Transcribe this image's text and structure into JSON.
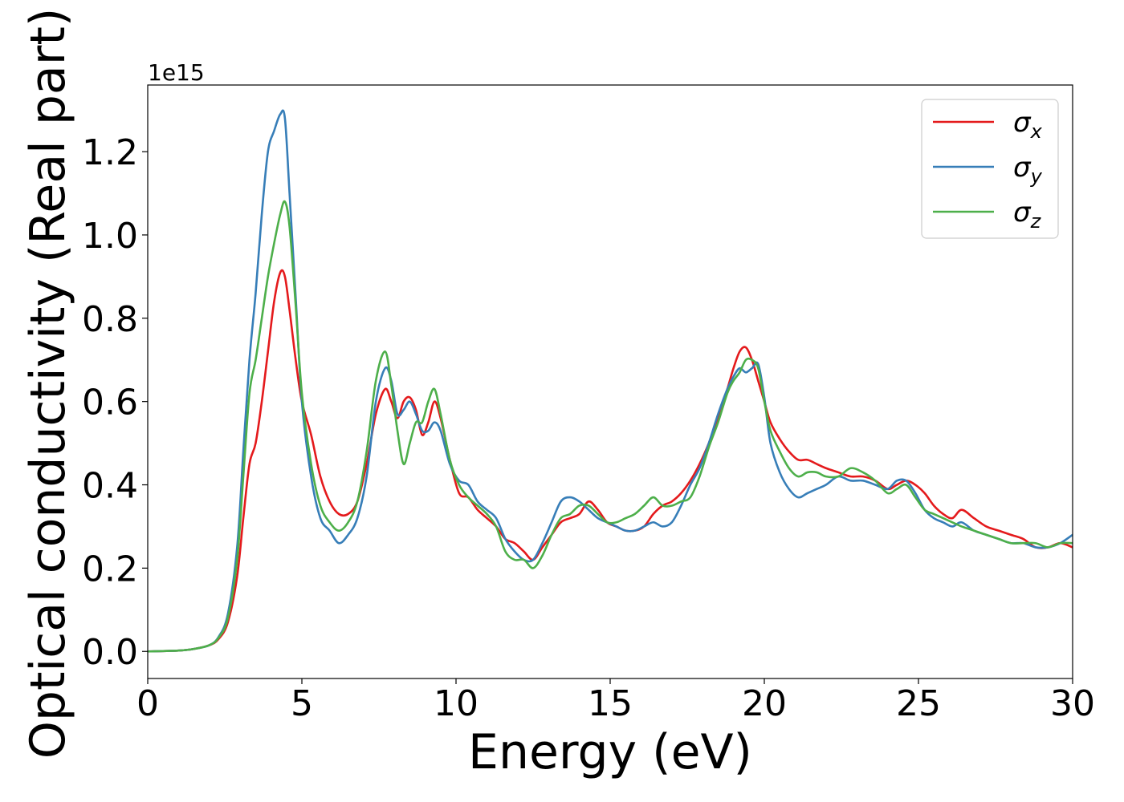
{
  "chart_data": {
    "type": "line",
    "title": "",
    "xlabel": "Energy (eV)",
    "ylabel": "Optical conductivity (Real part)",
    "offset_text": "1e15",
    "xlim": [
      0,
      30
    ],
    "ylim": [
      -0.065,
      1.36
    ],
    "xticks": [
      0,
      5,
      10,
      15,
      20,
      25,
      30
    ],
    "xtick_labels": [
      "0",
      "5",
      "10",
      "15",
      "20",
      "25",
      "30"
    ],
    "yticks": [
      0.0,
      0.2,
      0.4,
      0.6,
      0.8,
      1.0,
      1.2
    ],
    "ytick_labels": [
      "0.0",
      "0.2",
      "0.4",
      "0.6",
      "0.8",
      "1.0",
      "1.2"
    ],
    "grid": false,
    "legend_position": "top-right",
    "series": [
      {
        "name": "σx",
        "label_base": "σ",
        "label_sub": "x",
        "color": "#e41a1c",
        "x": [
          0,
          1,
          1.5,
          2,
          2.3,
          2.6,
          2.9,
          3.1,
          3.3,
          3.5,
          3.7,
          3.9,
          4.1,
          4.3,
          4.45,
          4.6,
          4.8,
          5.0,
          5.3,
          5.6,
          5.9,
          6.2,
          6.5,
          6.8,
          7.1,
          7.4,
          7.7,
          7.9,
          8.1,
          8.3,
          8.5,
          8.7,
          8.9,
          9.1,
          9.3,
          9.5,
          9.8,
          10.1,
          10.4,
          10.7,
          11.0,
          11.3,
          11.6,
          11.9,
          12.2,
          12.5,
          12.8,
          13.1,
          13.4,
          13.7,
          14.0,
          14.3,
          14.6,
          14.9,
          15.2,
          15.5,
          15.8,
          16.1,
          16.4,
          16.7,
          17.0,
          17.3,
          17.6,
          17.9,
          18.2,
          18.5,
          18.8,
          19.0,
          19.2,
          19.4,
          19.6,
          19.8,
          20.0,
          20.2,
          20.5,
          20.8,
          21.1,
          21.4,
          21.7,
          22.0,
          22.4,
          22.8,
          23.2,
          23.6,
          24.0,
          24.3,
          24.6,
          24.9,
          25.2,
          25.5,
          25.8,
          26.1,
          26.4,
          26.8,
          27.2,
          27.6,
          28.0,
          28.4,
          28.8,
          29.2,
          29.6,
          30.0
        ],
        "y": [
          0.0,
          0.002,
          0.006,
          0.015,
          0.03,
          0.07,
          0.18,
          0.32,
          0.45,
          0.5,
          0.6,
          0.72,
          0.84,
          0.91,
          0.9,
          0.82,
          0.7,
          0.6,
          0.52,
          0.42,
          0.36,
          0.33,
          0.33,
          0.36,
          0.45,
          0.57,
          0.63,
          0.6,
          0.56,
          0.6,
          0.61,
          0.58,
          0.52,
          0.55,
          0.6,
          0.56,
          0.46,
          0.38,
          0.37,
          0.34,
          0.32,
          0.3,
          0.27,
          0.26,
          0.24,
          0.22,
          0.25,
          0.28,
          0.31,
          0.32,
          0.33,
          0.36,
          0.34,
          0.31,
          0.3,
          0.29,
          0.29,
          0.3,
          0.33,
          0.35,
          0.36,
          0.38,
          0.41,
          0.45,
          0.5,
          0.56,
          0.63,
          0.68,
          0.72,
          0.73,
          0.7,
          0.65,
          0.6,
          0.55,
          0.51,
          0.48,
          0.46,
          0.46,
          0.45,
          0.44,
          0.43,
          0.42,
          0.42,
          0.41,
          0.39,
          0.4,
          0.41,
          0.4,
          0.38,
          0.35,
          0.33,
          0.32,
          0.34,
          0.32,
          0.3,
          0.29,
          0.28,
          0.27,
          0.25,
          0.25,
          0.26,
          0.25
        ]
      },
      {
        "name": "σy",
        "label_base": "σ",
        "label_sub": "y",
        "color": "#377eb8",
        "x": [
          0,
          1,
          1.5,
          2,
          2.3,
          2.6,
          2.9,
          3.1,
          3.3,
          3.5,
          3.7,
          3.9,
          4.1,
          4.3,
          4.45,
          4.6,
          4.8,
          5.0,
          5.3,
          5.6,
          5.9,
          6.2,
          6.5,
          6.8,
          7.1,
          7.4,
          7.7,
          7.9,
          8.1,
          8.3,
          8.5,
          8.7,
          8.9,
          9.1,
          9.3,
          9.5,
          9.8,
          10.1,
          10.4,
          10.7,
          11.0,
          11.3,
          11.6,
          11.9,
          12.2,
          12.5,
          12.8,
          13.1,
          13.4,
          13.7,
          14.0,
          14.3,
          14.6,
          14.9,
          15.2,
          15.5,
          15.8,
          16.1,
          16.4,
          16.7,
          17.0,
          17.3,
          17.6,
          17.9,
          18.2,
          18.5,
          18.8,
          19.0,
          19.2,
          19.4,
          19.6,
          19.8,
          20.0,
          20.2,
          20.5,
          20.8,
          21.1,
          21.4,
          21.7,
          22.0,
          22.4,
          22.8,
          23.2,
          23.6,
          24.0,
          24.3,
          24.6,
          24.9,
          25.2,
          25.5,
          25.8,
          26.1,
          26.4,
          26.8,
          27.2,
          27.6,
          28.0,
          28.4,
          28.8,
          29.2,
          29.6,
          30.0
        ],
        "y": [
          0.0,
          0.002,
          0.006,
          0.015,
          0.035,
          0.09,
          0.25,
          0.48,
          0.7,
          0.86,
          1.05,
          1.2,
          1.25,
          1.29,
          1.28,
          1.1,
          0.85,
          0.6,
          0.42,
          0.32,
          0.29,
          0.26,
          0.28,
          0.32,
          0.42,
          0.6,
          0.68,
          0.65,
          0.57,
          0.58,
          0.6,
          0.57,
          0.53,
          0.53,
          0.55,
          0.53,
          0.45,
          0.41,
          0.4,
          0.36,
          0.34,
          0.32,
          0.27,
          0.24,
          0.22,
          0.22,
          0.26,
          0.31,
          0.36,
          0.37,
          0.36,
          0.34,
          0.32,
          0.31,
          0.3,
          0.29,
          0.29,
          0.3,
          0.31,
          0.3,
          0.31,
          0.35,
          0.4,
          0.44,
          0.5,
          0.57,
          0.63,
          0.66,
          0.68,
          0.67,
          0.68,
          0.69,
          0.61,
          0.5,
          0.43,
          0.39,
          0.37,
          0.38,
          0.39,
          0.4,
          0.42,
          0.41,
          0.41,
          0.4,
          0.39,
          0.41,
          0.41,
          0.38,
          0.34,
          0.32,
          0.31,
          0.3,
          0.31,
          0.29,
          0.28,
          0.27,
          0.26,
          0.26,
          0.25,
          0.25,
          0.26,
          0.28
        ]
      },
      {
        "name": "σz",
        "label_base": "σ",
        "label_sub": "z",
        "color": "#4daf4a",
        "x": [
          0,
          1,
          1.5,
          2,
          2.3,
          2.6,
          2.9,
          3.1,
          3.3,
          3.5,
          3.7,
          3.9,
          4.1,
          4.3,
          4.45,
          4.6,
          4.8,
          5.0,
          5.3,
          5.6,
          5.9,
          6.2,
          6.5,
          6.8,
          7.1,
          7.4,
          7.7,
          7.9,
          8.1,
          8.3,
          8.5,
          8.7,
          8.9,
          9.1,
          9.3,
          9.5,
          9.8,
          10.1,
          10.4,
          10.7,
          11.0,
          11.3,
          11.6,
          11.9,
          12.2,
          12.5,
          12.8,
          13.1,
          13.4,
          13.7,
          14.0,
          14.3,
          14.6,
          14.9,
          15.2,
          15.5,
          15.8,
          16.1,
          16.4,
          16.7,
          17.0,
          17.3,
          17.6,
          17.9,
          18.2,
          18.5,
          18.8,
          19.0,
          19.2,
          19.4,
          19.6,
          19.8,
          20.0,
          20.2,
          20.5,
          20.8,
          21.1,
          21.4,
          21.7,
          22.0,
          22.4,
          22.8,
          23.2,
          23.6,
          24.0,
          24.3,
          24.6,
          24.9,
          25.2,
          25.5,
          25.8,
          26.1,
          26.4,
          26.8,
          27.2,
          27.6,
          28.0,
          28.4,
          28.8,
          29.2,
          29.6,
          30.0
        ],
        "y": [
          0.0,
          0.002,
          0.006,
          0.015,
          0.033,
          0.08,
          0.22,
          0.42,
          0.62,
          0.7,
          0.8,
          0.9,
          0.98,
          1.05,
          1.08,
          1.02,
          0.83,
          0.62,
          0.45,
          0.35,
          0.31,
          0.29,
          0.31,
          0.36,
          0.48,
          0.65,
          0.72,
          0.64,
          0.53,
          0.45,
          0.5,
          0.55,
          0.55,
          0.6,
          0.63,
          0.57,
          0.46,
          0.4,
          0.37,
          0.35,
          0.33,
          0.3,
          0.24,
          0.22,
          0.22,
          0.2,
          0.23,
          0.28,
          0.32,
          0.33,
          0.35,
          0.35,
          0.33,
          0.31,
          0.31,
          0.32,
          0.33,
          0.35,
          0.37,
          0.35,
          0.35,
          0.36,
          0.37,
          0.42,
          0.49,
          0.55,
          0.62,
          0.65,
          0.67,
          0.7,
          0.7,
          0.68,
          0.6,
          0.53,
          0.48,
          0.44,
          0.42,
          0.43,
          0.43,
          0.42,
          0.42,
          0.44,
          0.43,
          0.41,
          0.38,
          0.39,
          0.4,
          0.37,
          0.34,
          0.33,
          0.32,
          0.31,
          0.3,
          0.29,
          0.28,
          0.27,
          0.26,
          0.26,
          0.26,
          0.25,
          0.26,
          0.26
        ]
      }
    ]
  }
}
